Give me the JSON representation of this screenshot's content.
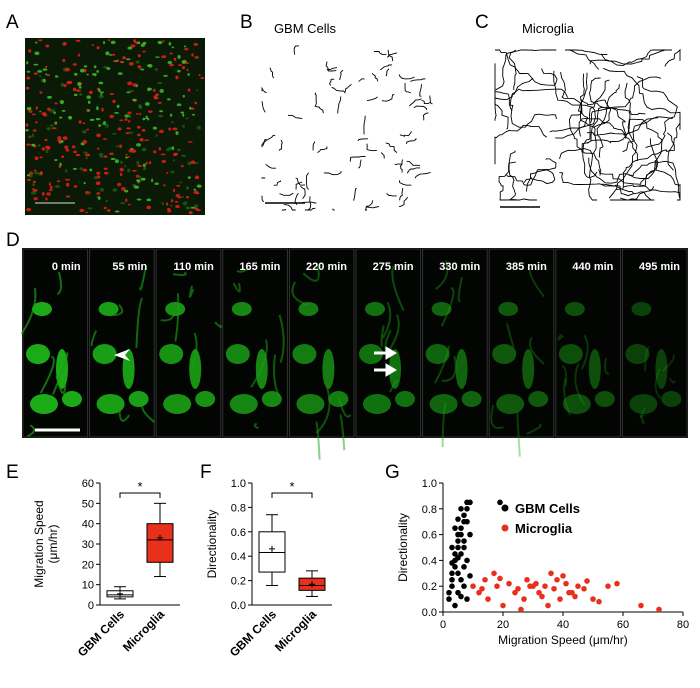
{
  "panels": {
    "a": "A",
    "b": "B",
    "c": "C",
    "d": "D",
    "e": "E",
    "f": "F",
    "g": "G",
    "b_title": "GBM Cells",
    "c_title": "Microglia",
    "d_times": [
      "0 min",
      "55 min",
      "110 min",
      "165 min",
      "220 min",
      "275 min",
      "330 min",
      "385 min",
      "440 min",
      "495 min"
    ]
  },
  "chart_data": [
    {
      "type": "box",
      "ylabel_lines": [
        "Migration Speed",
        "(μm/hr)"
      ],
      "categories": [
        "GBM Cells",
        "Microglia"
      ],
      "boxes": [
        {
          "min": 3,
          "q1": 4,
          "median": 5,
          "q3": 7,
          "max": 9,
          "mean": 5.5,
          "color": "#ffffff"
        },
        {
          "min": 14,
          "q1": 21,
          "median": 32,
          "q3": 40,
          "max": 50,
          "mean": 33,
          "color": "#e8301c"
        }
      ],
      "significance": "*",
      "ylim": [
        0,
        60
      ],
      "yticks": [
        0,
        10,
        20,
        30,
        40,
        50,
        60
      ]
    },
    {
      "type": "box",
      "ylabel_lines": [
        "Directionality"
      ],
      "categories": [
        "GBM Cells",
        "Microglia"
      ],
      "boxes": [
        {
          "min": 0.16,
          "q1": 0.27,
          "median": 0.43,
          "q3": 0.6,
          "max": 0.74,
          "mean": 0.46,
          "color": "#ffffff"
        },
        {
          "min": 0.07,
          "q1": 0.12,
          "median": 0.16,
          "q3": 0.22,
          "max": 0.28,
          "mean": 0.17,
          "color": "#e8301c"
        }
      ],
      "significance": "*",
      "ylim": [
        0,
        1
      ],
      "yticks": [
        {
          "value": 0,
          "label": "0.0"
        },
        0.2,
        0.4,
        0.6,
        0.8,
        {
          "value": 1,
          "label": "1.0"
        }
      ]
    },
    {
      "type": "scatter",
      "xlabel": "Migration Speed (μm/hr)",
      "ylabel_lines": [
        "Directionality"
      ],
      "xlim": [
        0,
        80
      ],
      "xticks": [
        0,
        20,
        40,
        60,
        80
      ],
      "ylim": [
        0,
        1
      ],
      "yticks": [
        {
          "value": 0,
          "label": "0.0"
        },
        0.2,
        0.4,
        0.6,
        0.8,
        {
          "value": 1,
          "label": "1.0"
        }
      ],
      "series": [
        {
          "name": "GBM Cells",
          "color": "#000000",
          "x": [
            2,
            3,
            4,
            5,
            6,
            7,
            8,
            9,
            3,
            4,
            5,
            6,
            7,
            8,
            2,
            3,
            4,
            5,
            6,
            7,
            8,
            9,
            4,
            5,
            6,
            7,
            3,
            5,
            6,
            8,
            4,
            5,
            7,
            9,
            6,
            3,
            5,
            7,
            19,
            8
          ],
          "values": [
            0.1,
            0.3,
            0.45,
            0.55,
            0.6,
            0.7,
            0.8,
            0.85,
            0.2,
            0.35,
            0.5,
            0.65,
            0.75,
            0.85,
            0.15,
            0.25,
            0.4,
            0.3,
            0.45,
            0.55,
            0.7,
            0.6,
            0.05,
            0.15,
            0.25,
            0.35,
            0.5,
            0.6,
            0.8,
            0.4,
            0.65,
            0.42,
            0.5,
            0.28,
            0.12,
            0.38,
            0.72,
            0.2,
            0.85,
            0.1
          ]
        },
        {
          "name": "Microglia",
          "color": "#e8301c",
          "x": [
            10,
            12,
            14,
            15,
            17,
            18,
            20,
            22,
            24,
            25,
            27,
            28,
            30,
            31,
            32,
            33,
            34,
            35,
            36,
            37,
            38,
            39,
            40,
            41,
            42,
            44,
            45,
            47,
            50,
            52,
            58,
            66,
            72,
            13,
            19,
            26,
            29,
            43,
            48,
            55
          ],
          "values": [
            0.2,
            0.15,
            0.25,
            0.1,
            0.3,
            0.2,
            0.05,
            0.22,
            0.15,
            0.18,
            0.1,
            0.25,
            0.2,
            0.22,
            0.15,
            0.12,
            0.2,
            0.05,
            0.3,
            0.18,
            0.25,
            0.1,
            0.28,
            0.22,
            0.15,
            0.12,
            0.2,
            0.18,
            0.1,
            0.08,
            0.22,
            0.05,
            0.02,
            0.18,
            0.26,
            0.02,
            0.2,
            0.15,
            0.24,
            0.2
          ]
        }
      ]
    }
  ]
}
